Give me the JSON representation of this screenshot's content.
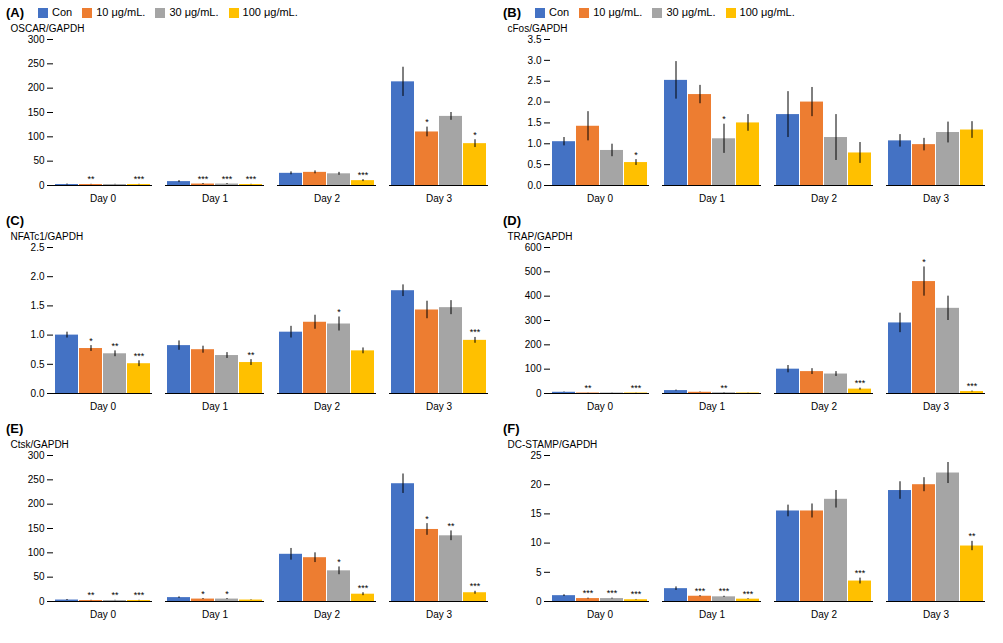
{
  "chart_data": [
    {
      "type": "bar",
      "title": "(A)",
      "ylabel": "OSCAR/GAPDH",
      "categories": [
        "Day 0",
        "Day 1",
        "Day 2",
        "Day 3"
      ],
      "series": [
        {
          "name": "Con",
          "color": "#4472C4",
          "values": [
            2,
            8,
            25,
            213
          ],
          "errors": [
            1,
            2,
            3,
            30
          ],
          "annotations": [
            null,
            null,
            null,
            null
          ]
        },
        {
          "name": "10 μg/mL.",
          "color": "#ED7D31",
          "values": [
            2,
            3,
            27,
            110
          ],
          "errors": [
            0.5,
            1,
            3,
            10
          ],
          "annotations": [
            "**",
            "***",
            null,
            "*"
          ]
        },
        {
          "name": "30 μg/mL.",
          "color": "#A5A5A5",
          "values": [
            2,
            3,
            24,
            142
          ],
          "errors": [
            0.5,
            1,
            3,
            8
          ],
          "annotations": [
            null,
            "***",
            null,
            null
          ]
        },
        {
          "name": "100 μg/mL.",
          "color": "#FFC000",
          "values": [
            2,
            2,
            10,
            86
          ],
          "errors": [
            0.5,
            0.5,
            2,
            8
          ],
          "annotations": [
            "***",
            "***",
            "***",
            "*"
          ]
        }
      ],
      "ylim": [
        0,
        300
      ],
      "yticks": [
        0,
        50,
        100,
        150,
        200,
        250,
        300
      ],
      "grid": false,
      "legend": "upper left"
    },
    {
      "type": "bar",
      "title": "(B)",
      "ylabel": "cFos/GAPDH",
      "categories": [
        "Day 0",
        "Day 1",
        "Day 2",
        "Day 3"
      ],
      "series": [
        {
          "name": "Con",
          "color": "#4472C4",
          "values": [
            1.05,
            2.52,
            1.7,
            1.07
          ],
          "errors": [
            0.1,
            0.45,
            0.55,
            0.15
          ],
          "annotations": [
            null,
            null,
            null,
            null
          ]
        },
        {
          "name": "10 μg/mL.",
          "color": "#ED7D31",
          "values": [
            1.42,
            2.18,
            2.0,
            0.98
          ],
          "errors": [
            0.35,
            0.22,
            0.35,
            0.15
          ],
          "annotations": [
            null,
            null,
            null,
            null
          ]
        },
        {
          "name": "30 μg/mL.",
          "color": "#A5A5A5",
          "values": [
            0.84,
            1.12,
            1.15,
            1.27
          ],
          "errors": [
            0.15,
            0.35,
            0.55,
            0.25
          ],
          "annotations": [
            null,
            "*",
            null,
            null
          ]
        },
        {
          "name": "100 μg/mL.",
          "color": "#FFC000",
          "values": [
            0.55,
            1.5,
            0.78,
            1.33
          ],
          "errors": [
            0.07,
            0.2,
            0.25,
            0.2
          ],
          "annotations": [
            "*",
            null,
            null,
            null
          ]
        }
      ],
      "ylim": [
        0,
        3.5
      ],
      "yticks": [
        {
          "value": 0,
          "label": "0.0"
        },
        0.5,
        {
          "value": 1,
          "label": "1.0"
        },
        1.5,
        {
          "value": 2,
          "label": "2.0"
        },
        2.5,
        {
          "value": 3,
          "label": "3.0"
        },
        3.5
      ],
      "grid": false,
      "legend": "upper left"
    },
    {
      "type": "bar",
      "title": "(C)",
      "ylabel": "NFATc1/GAPDH",
      "categories": [
        "Day 0",
        "Day 1",
        "Day 2",
        "Day 3"
      ],
      "series": [
        {
          "name": "Con",
          "color": "#4472C4",
          "values": [
            1.0,
            0.82,
            1.05,
            1.76
          ],
          "errors": [
            0.05,
            0.08,
            0.1,
            0.1
          ],
          "annotations": [
            null,
            null,
            null,
            null
          ]
        },
        {
          "name": "10 μg/mL.",
          "color": "#ED7D31",
          "values": [
            0.77,
            0.75,
            1.22,
            1.43
          ],
          "errors": [
            0.05,
            0.06,
            0.12,
            0.15
          ],
          "annotations": [
            "*",
            null,
            null,
            null
          ]
        },
        {
          "name": "30 μg/mL.",
          "color": "#A5A5A5",
          "values": [
            0.68,
            0.65,
            1.19,
            1.47
          ],
          "errors": [
            0.05,
            0.05,
            0.12,
            0.12
          ],
          "annotations": [
            "**",
            null,
            "*",
            null
          ]
        },
        {
          "name": "100 μg/mL.",
          "color": "#FFC000",
          "values": [
            0.51,
            0.53,
            0.73,
            0.91
          ],
          "errors": [
            0.05,
            0.05,
            0.05,
            0.05
          ],
          "annotations": [
            "***",
            "**",
            null,
            "***"
          ]
        }
      ],
      "ylim": [
        0,
        2.5
      ],
      "yticks": [
        {
          "value": 0,
          "label": "0.0"
        },
        0.5,
        {
          "value": 1,
          "label": "1.0"
        },
        1.5,
        {
          "value": 2,
          "label": "2.0"
        },
        2.5
      ],
      "grid": false,
      "legend": false
    },
    {
      "type": "bar",
      "title": "(D)",
      "ylabel": "TRAP/GAPDH",
      "categories": [
        "Day 0",
        "Day 1",
        "Day 2",
        "Day 3"
      ],
      "series": [
        {
          "name": "Con",
          "color": "#4472C4",
          "values": [
            5,
            12,
            100,
            290
          ],
          "errors": [
            1,
            2,
            15,
            40
          ],
          "annotations": [
            null,
            null,
            null,
            null
          ]
        },
        {
          "name": "10 μg/mL.",
          "color": "#ED7D31",
          "values": [
            2,
            5,
            90,
            460
          ],
          "errors": [
            0.5,
            1,
            12,
            60
          ],
          "annotations": [
            "**",
            null,
            null,
            "*"
          ]
        },
        {
          "name": "30 μg/mL.",
          "color": "#A5A5A5",
          "values": [
            2,
            3,
            80,
            350
          ],
          "errors": [
            0.5,
            1,
            10,
            50
          ],
          "annotations": [
            null,
            "**",
            null,
            null
          ]
        },
        {
          "name": "100 μg/mL.",
          "color": "#FFC000",
          "values": [
            2,
            2,
            18,
            8
          ],
          "errors": [
            0.5,
            0.5,
            4,
            2
          ],
          "annotations": [
            "***",
            null,
            "***",
            "***"
          ]
        }
      ],
      "ylim": [
        0,
        600
      ],
      "yticks": [
        0,
        100,
        200,
        300,
        400,
        500,
        600
      ],
      "grid": false,
      "legend": false
    },
    {
      "type": "bar",
      "title": "(E)",
      "ylabel": "Ctsk/GAPDH",
      "categories": [
        "Day 0",
        "Day 1",
        "Day 2",
        "Day 3"
      ],
      "series": [
        {
          "name": "Con",
          "color": "#4472C4",
          "values": [
            3,
            8,
            97,
            242
          ],
          "errors": [
            1,
            1.5,
            12,
            20
          ],
          "annotations": [
            null,
            null,
            null,
            null
          ]
        },
        {
          "name": "10 μg/mL.",
          "color": "#ED7D31",
          "values": [
            2,
            5,
            90,
            148
          ],
          "errors": [
            0.5,
            1,
            10,
            12
          ],
          "annotations": [
            "**",
            "*",
            null,
            "*"
          ]
        },
        {
          "name": "30 μg/mL.",
          "color": "#A5A5A5",
          "values": [
            2,
            5,
            63,
            135
          ],
          "errors": [
            0.5,
            1,
            8,
            10
          ],
          "annotations": [
            "**",
            "*",
            "*",
            "**"
          ]
        },
        {
          "name": "100 μg/mL.",
          "color": "#FFC000",
          "values": [
            2,
            3,
            15,
            18
          ],
          "errors": [
            0.5,
            0.5,
            3,
            3
          ],
          "annotations": [
            "***",
            null,
            "***",
            "***"
          ]
        }
      ],
      "ylim": [
        0,
        300
      ],
      "yticks": [
        0,
        50,
        100,
        150,
        200,
        250,
        300
      ],
      "grid": false,
      "legend": false
    },
    {
      "type": "bar",
      "title": "(F)",
      "ylabel": "DC-STAMP/GAPDH",
      "categories": [
        "Day 0",
        "Day 1",
        "Day 2",
        "Day 3"
      ],
      "series": [
        {
          "name": "Con",
          "color": "#4472C4",
          "values": [
            1.0,
            2.2,
            15.5,
            19.0
          ],
          "errors": [
            0.15,
            0.3,
            1.0,
            1.5
          ],
          "annotations": [
            null,
            null,
            null,
            null
          ]
        },
        {
          "name": "10 μg/mL.",
          "color": "#ED7D31",
          "values": [
            0.5,
            0.9,
            15.5,
            20.0
          ],
          "errors": [
            0.08,
            0.1,
            1.2,
            1.2
          ],
          "annotations": [
            "***",
            "***",
            null,
            null
          ]
        },
        {
          "name": "30 μg/mL.",
          "color": "#A5A5A5",
          "values": [
            0.5,
            0.8,
            17.5,
            22.0
          ],
          "errors": [
            0.08,
            0.1,
            1.5,
            1.8
          ],
          "annotations": [
            "***",
            "***",
            null,
            null
          ]
        },
        {
          "name": "100 μg/mL.",
          "color": "#FFC000",
          "values": [
            0.3,
            0.4,
            3.5,
            9.5
          ],
          "errors": [
            0.05,
            0.06,
            0.5,
            0.8
          ],
          "annotations": [
            "***",
            "***",
            "***",
            "**"
          ]
        }
      ],
      "ylim": [
        0,
        25
      ],
      "yticks": [
        0,
        5,
        10,
        15,
        20,
        25
      ],
      "grid": false,
      "legend": false
    }
  ]
}
